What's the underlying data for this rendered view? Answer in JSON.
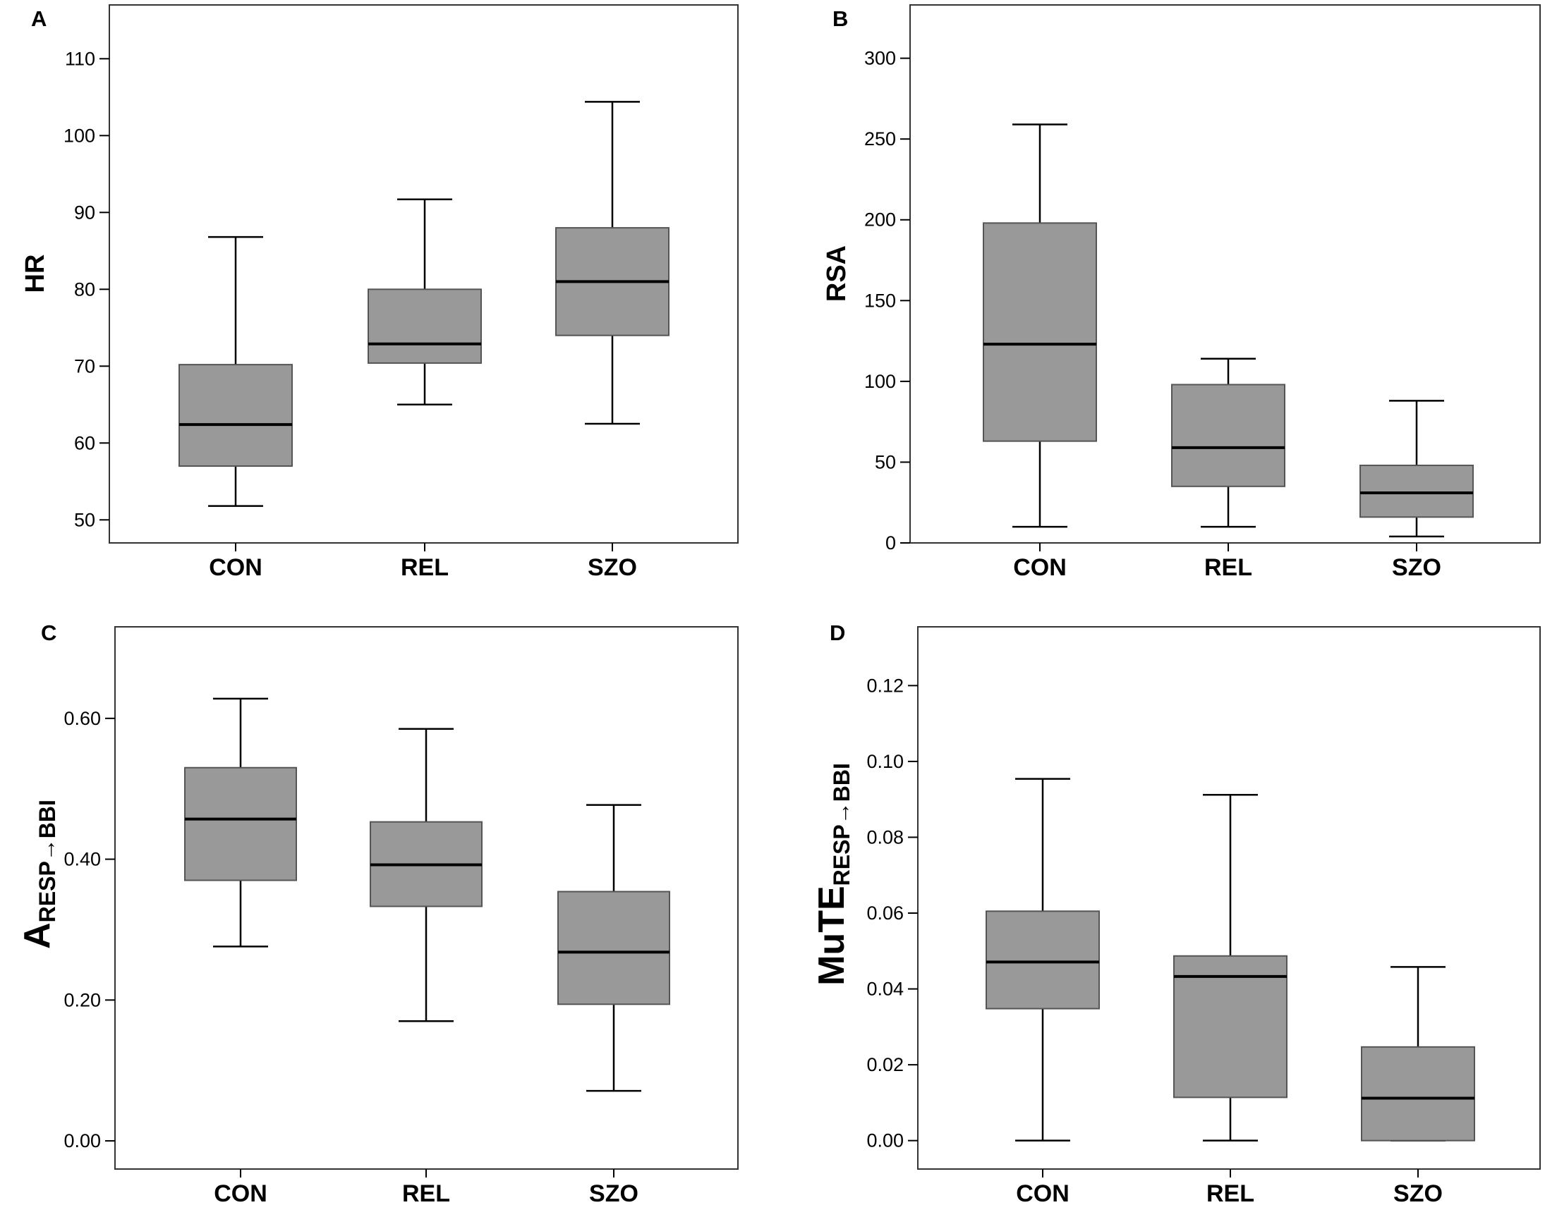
{
  "chart_data": [
    {
      "type": "box",
      "panel": "A",
      "ylabel": "HR",
      "ylabel_sub": "",
      "categories": [
        "CON",
        "REL",
        "SZO"
      ],
      "ylim": [
        47,
        117
      ],
      "yticks": [
        50,
        60,
        70,
        80,
        90,
        100,
        110
      ],
      "ytick_labels": [
        "50",
        "60",
        "70",
        "80",
        "90",
        "100",
        "110"
      ],
      "boxes": [
        {
          "min": 51.8,
          "q1": 57.0,
          "median": 62.4,
          "q3": 70.2,
          "max": 86.8
        },
        {
          "min": 65.0,
          "q1": 70.4,
          "median": 72.9,
          "q3": 80.0,
          "max": 91.7
        },
        {
          "min": 62.5,
          "q1": 74.0,
          "median": 81.0,
          "q3": 88.0,
          "max": 104.4
        }
      ]
    },
    {
      "type": "box",
      "panel": "B",
      "ylabel": "RSA",
      "ylabel_sub": "",
      "categories": [
        "CON",
        "REL",
        "SZO"
      ],
      "ylim": [
        0,
        333
      ],
      "yticks": [
        0,
        50,
        100,
        150,
        200,
        250,
        300
      ],
      "ytick_labels": [
        "0",
        "50",
        "100",
        "150",
        "200",
        "250",
        "300"
      ],
      "boxes": [
        {
          "min": 10,
          "q1": 63,
          "median": 123,
          "q3": 198,
          "max": 259
        },
        {
          "min": 10,
          "q1": 35,
          "median": 59,
          "q3": 98,
          "max": 114
        },
        {
          "min": 4,
          "q1": 16,
          "median": 31,
          "q3": 48,
          "max": 88
        }
      ]
    },
    {
      "type": "box",
      "panel": "C",
      "ylabel": "A",
      "ylabel_sub": "RESP→BBI",
      "categories": [
        "CON",
        "REL",
        "SZO"
      ],
      "ylim": [
        -0.04,
        0.73
      ],
      "yticks": [
        0,
        0.2,
        0.4,
        0.6
      ],
      "ytick_labels": [
        "0.00",
        "0.20",
        "0.40",
        "0.60"
      ],
      "boxes": [
        {
          "min": 0.276,
          "q1": 0.37,
          "median": 0.457,
          "q3": 0.53,
          "max": 0.628
        },
        {
          "min": 0.17,
          "q1": 0.333,
          "median": 0.392,
          "q3": 0.453,
          "max": 0.585
        },
        {
          "min": 0.071,
          "q1": 0.194,
          "median": 0.268,
          "q3": 0.354,
          "max": 0.477
        }
      ]
    },
    {
      "type": "box",
      "panel": "D",
      "ylabel": "MuTE",
      "ylabel_sub": "RESP→BBI",
      "categories": [
        "CON",
        "REL",
        "SZO"
      ],
      "ylim": [
        -0.0075,
        0.1355
      ],
      "yticks": [
        0,
        0.02,
        0.04,
        0.06,
        0.08,
        0.1,
        0.12
      ],
      "ytick_labels": [
        "0.00",
        "0.02",
        "0.04",
        "0.06",
        "0.08",
        "0.10",
        "0.12"
      ],
      "boxes": [
        {
          "min": 0.0,
          "q1": 0.0348,
          "median": 0.0471,
          "q3": 0.0605,
          "max": 0.0954
        },
        {
          "min": 0.0,
          "q1": 0.0114,
          "median": 0.0433,
          "q3": 0.0487,
          "max": 0.0912
        },
        {
          "min": 0.0,
          "q1": 0.0,
          "median": 0.0112,
          "q3": 0.0247,
          "max": 0.0458
        }
      ]
    }
  ],
  "style": {
    "box_fill": "#999999",
    "box_stroke": "#555555",
    "median_color": "#000000",
    "axis_color": "#000000",
    "frame_color": "#333333"
  }
}
